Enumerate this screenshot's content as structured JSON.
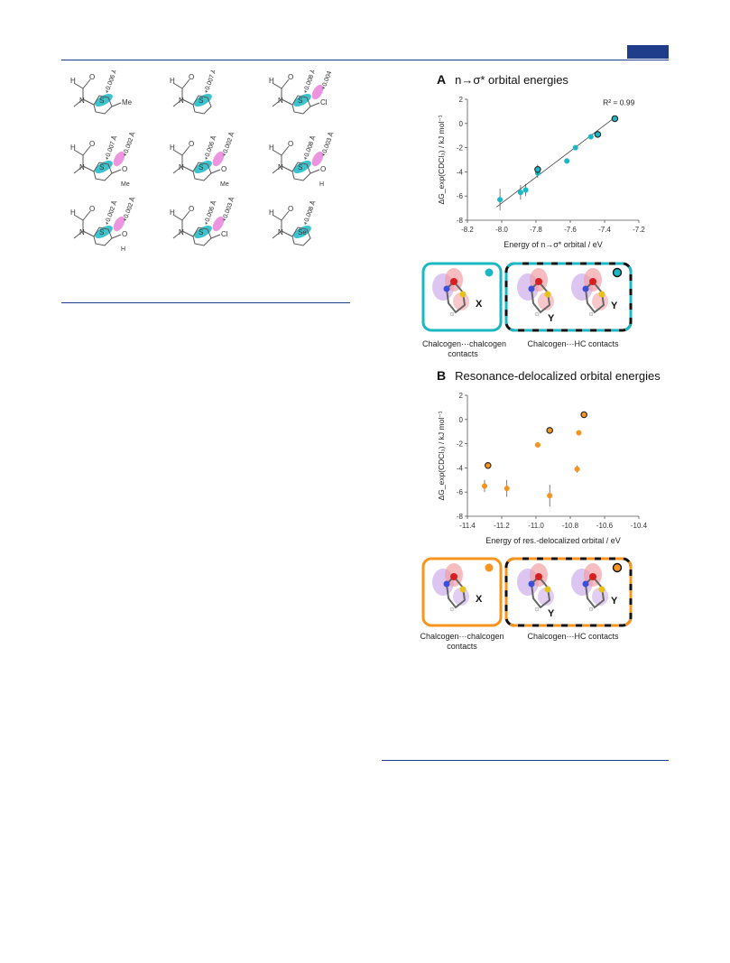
{
  "molecules": [
    {
      "id": "m1",
      "d1": "+0.006 Å",
      "d2": "",
      "sub": "Me",
      "ring": "S"
    },
    {
      "id": "m2",
      "d1": "+0.007 Å",
      "d2": "",
      "sub": "",
      "ring": "S"
    },
    {
      "id": "m3",
      "d1": "+0.008 Å",
      "d2": "+0.004 Å",
      "sub": "Cl",
      "ring": "S"
    },
    {
      "id": "m4",
      "d1": "+0.007 Å",
      "d2": "+0.002 Å",
      "sub": "O",
      "sub2": "Me",
      "ring": "S"
    },
    {
      "id": "m5",
      "d1": "+0.006 Å",
      "d2": "+0.002 Å",
      "sub": "O",
      "sub2": "Me",
      "ring": "S"
    },
    {
      "id": "m6",
      "d1": "+0.008 Å",
      "d2": "+0.003 Å",
      "sub": "O",
      "sub2": "H",
      "ring": "S"
    },
    {
      "id": "m7",
      "d1": "+0.002 Å",
      "d2": "+0.002 Å",
      "sub": "O",
      "sub2": "H",
      "ring": "S"
    },
    {
      "id": "m8",
      "d1": "+0.006 Å",
      "d2": "+0.003 Å",
      "sub": "Cl",
      "ring": "S"
    },
    {
      "id": "m9",
      "d1": "+0.008 Å",
      "d2": "",
      "sub": "",
      "ring": "Se"
    }
  ],
  "atom_labels": {
    "H": "H",
    "O": "O",
    "N": "N",
    "S": "S",
    "Se": "Se",
    "X": "X",
    "Y": "Y"
  },
  "panelA": {
    "letter": "A",
    "title": "n→σ* orbital energies",
    "r2": "R² = 0.99",
    "xlabel": "Energy of n→σ* orbital / eV",
    "ylabel": "ΔG_exp(CDCl₃) / kJ mol⁻¹",
    "chalc_caption_1": "Chalcogen···chalcogen",
    "chalc_caption_2": "contacts",
    "hc_caption": "Chalcogen···HC contacts"
  },
  "panelB": {
    "letter": "B",
    "title": "Resonance-delocalized orbital energies",
    "xlabel": "Energy of res.-delocalized orbital / eV",
    "ylabel": "ΔG_exp(CDCl₃) / kJ mol⁻¹",
    "chalc_caption_1": "Chalcogen···chalcogen",
    "chalc_caption_2": "contacts",
    "hc_caption": "Chalcogen···HC contacts"
  },
  "colors": {
    "navy": "#1f3d8a",
    "teal": "#1bb8c4",
    "teal_dark": "#137f87",
    "orange": "#f7941d",
    "orange_dark": "#a04a12",
    "magenta": "#e879d8"
  },
  "chart_data": [
    {
      "type": "scatter",
      "title": "n→σ* orbital energies",
      "xlabel": "Energy of n→σ* orbital / eV",
      "ylabel": "ΔG_exp(CDCl₃) / kJ mol⁻¹",
      "xlim": [
        -8.2,
        -7.2
      ],
      "ylim": [
        -8,
        2
      ],
      "xticks": [
        -8.2,
        -8.0,
        -7.8,
        -7.6,
        -7.4,
        -7.2
      ],
      "yticks": [
        -8,
        -6,
        -4,
        -2,
        0,
        2
      ],
      "annotation": "R² = 0.99",
      "fit": {
        "x": [
          -8.03,
          -7.34
        ],
        "y": [
          -6.9,
          0.5
        ]
      },
      "series": [
        {
          "marker": "chalcogen-chalcogen",
          "points": [
            {
              "x": -8.01,
              "y": -6.3,
              "err": 0.9
            },
            {
              "x": -7.89,
              "y": -5.7,
              "err": 0.6
            },
            {
              "x": -7.86,
              "y": -5.5,
              "err": 0.5
            },
            {
              "x": -7.79,
              "y": -4.1,
              "err": 0.4
            },
            {
              "x": -7.62,
              "y": -3.1,
              "err": 0.2
            },
            {
              "x": -7.57,
              "y": -2.0,
              "err": 0.2
            },
            {
              "x": -7.48,
              "y": -1.1,
              "err": 0.2
            }
          ]
        },
        {
          "marker": "chalcogen-HC",
          "points": [
            {
              "x": -7.79,
              "y": -3.8,
              "err": 0.4
            },
            {
              "x": -7.44,
              "y": -0.9,
              "err": 0.2
            },
            {
              "x": -7.34,
              "y": 0.4,
              "err": 0.2
            }
          ]
        }
      ]
    },
    {
      "type": "scatter",
      "title": "Resonance-delocalized orbital energies",
      "xlabel": "Energy of res.-delocalized orbital / eV",
      "ylabel": "ΔG_exp(CDCl₃) / kJ mol⁻¹",
      "xlim": [
        -11.4,
        -10.4
      ],
      "ylim": [
        -8,
        2
      ],
      "xticks": [
        -11.4,
        -11.2,
        -11.0,
        -10.8,
        -10.6,
        -10.4
      ],
      "yticks": [
        -8,
        -6,
        -4,
        -2,
        0,
        2
      ],
      "series": [
        {
          "marker": "chalcogen-chalcogen",
          "points": [
            {
              "x": -11.3,
              "y": -5.5,
              "err": 0.5
            },
            {
              "x": -11.17,
              "y": -5.7,
              "err": 0.7
            },
            {
              "x": -10.99,
              "y": -2.1,
              "err": 0.1
            },
            {
              "x": -10.92,
              "y": -6.3,
              "err": 0.9
            },
            {
              "x": -10.76,
              "y": -4.1,
              "err": 0.3
            },
            {
              "x": -10.75,
              "y": -1.1,
              "err": 0.1
            }
          ]
        },
        {
          "marker": "chalcogen-HC",
          "points": [
            {
              "x": -11.28,
              "y": -3.8,
              "err": 0.2
            },
            {
              "x": -10.92,
              "y": -0.9,
              "err": 0.1
            },
            {
              "x": -10.72,
              "y": 0.4,
              "err": 0.1
            }
          ]
        }
      ]
    }
  ]
}
